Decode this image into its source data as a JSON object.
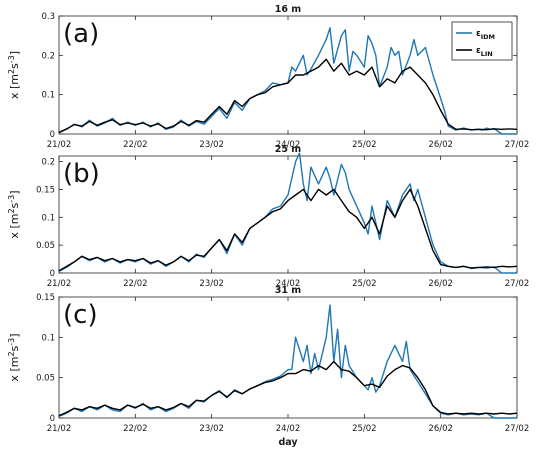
{
  "chart_data": [
    {
      "type": "line",
      "panel_label": "(a)",
      "title": "16 m",
      "ylabel": "x [m",
      "ylim": [
        0,
        0.3
      ],
      "yticks": [
        0,
        0.1,
        0.2,
        0.3
      ],
      "ytick_labels": [
        "0",
        "0.1",
        "0.2",
        "0.3"
      ],
      "xlim": [
        0,
        6
      ],
      "xticks": [
        0,
        1,
        2,
        3,
        4,
        5,
        6
      ],
      "xtick_labels": [
        "21/02",
        "22/02",
        "23/02",
        "24/02",
        "25/02",
        "26/02",
        "27/02"
      ],
      "xlabel": "",
      "legend_position": "top-right",
      "legend": [
        {
          "symbol": "ε",
          "sub": "IDM",
          "color": "#1f77b4"
        },
        {
          "symbol": "ε",
          "sub": "LIN",
          "color": "#000000"
        }
      ],
      "grid": false,
      "series": [
        {
          "key": "IDM",
          "color": "#1f77b4",
          "x": [
            0.0,
            0.1,
            0.2,
            0.3,
            0.4,
            0.5,
            0.6,
            0.7,
            0.8,
            0.9,
            1.0,
            1.1,
            1.2,
            1.3,
            1.4,
            1.5,
            1.6,
            1.7,
            1.8,
            1.9,
            2.0,
            2.1,
            2.2,
            2.3,
            2.4,
            2.5,
            2.6,
            2.7,
            2.8,
            2.9,
            3.0,
            3.05,
            3.1,
            3.2,
            3.25,
            3.3,
            3.4,
            3.5,
            3.55,
            3.6,
            3.7,
            3.75,
            3.8,
            3.85,
            3.9,
            4.0,
            4.05,
            4.1,
            4.15,
            4.2,
            4.3,
            4.35,
            4.4,
            4.45,
            4.5,
            4.6,
            4.65,
            4.7,
            4.8,
            4.9,
            5.0,
            5.05,
            5.1,
            5.2,
            5.3,
            5.4,
            5.5,
            5.55,
            5.6,
            5.65,
            5.7,
            5.8,
            5.9,
            6.0
          ],
          "y": [
            0.003,
            0.012,
            0.025,
            0.018,
            0.035,
            0.02,
            0.028,
            0.04,
            0.022,
            0.03,
            0.022,
            0.03,
            0.018,
            0.028,
            0.012,
            0.018,
            0.035,
            0.02,
            0.032,
            0.025,
            0.045,
            0.065,
            0.04,
            0.08,
            0.06,
            0.09,
            0.1,
            0.11,
            0.13,
            0.125,
            0.13,
            0.17,
            0.16,
            0.2,
            0.15,
            0.165,
            0.2,
            0.24,
            0.27,
            0.18,
            0.25,
            0.265,
            0.16,
            0.21,
            0.2,
            0.17,
            0.25,
            0.23,
            0.2,
            0.12,
            0.17,
            0.22,
            0.2,
            0.21,
            0.15,
            0.2,
            0.24,
            0.2,
            0.22,
            0.15,
            0.09,
            0.06,
            0.02,
            0.01,
            0.015,
            0.01,
            0.012,
            0.01,
            0.015,
            0.012,
            0.014,
            0.0,
            0.0,
            0.0
          ]
        },
        {
          "key": "LIN",
          "color": "#000000",
          "x": [
            0.0,
            0.1,
            0.2,
            0.3,
            0.4,
            0.5,
            0.6,
            0.7,
            0.8,
            0.9,
            1.0,
            1.1,
            1.2,
            1.3,
            1.4,
            1.5,
            1.6,
            1.7,
            1.8,
            1.9,
            2.0,
            2.1,
            2.2,
            2.3,
            2.4,
            2.5,
            2.6,
            2.7,
            2.8,
            2.9,
            3.0,
            3.1,
            3.2,
            3.3,
            3.4,
            3.5,
            3.6,
            3.7,
            3.8,
            3.9,
            4.0,
            4.1,
            4.2,
            4.3,
            4.4,
            4.5,
            4.6,
            4.7,
            4.8,
            4.9,
            5.0,
            5.1,
            5.2,
            5.3,
            5.4,
            5.5,
            5.6,
            5.7,
            5.8,
            5.9,
            6.0
          ],
          "y": [
            0.004,
            0.013,
            0.024,
            0.02,
            0.032,
            0.022,
            0.03,
            0.036,
            0.024,
            0.028,
            0.024,
            0.028,
            0.02,
            0.026,
            0.014,
            0.02,
            0.032,
            0.022,
            0.034,
            0.03,
            0.05,
            0.07,
            0.05,
            0.085,
            0.07,
            0.09,
            0.1,
            0.105,
            0.12,
            0.125,
            0.13,
            0.15,
            0.15,
            0.16,
            0.17,
            0.19,
            0.16,
            0.18,
            0.15,
            0.16,
            0.15,
            0.17,
            0.12,
            0.14,
            0.13,
            0.16,
            0.17,
            0.15,
            0.13,
            0.1,
            0.06,
            0.025,
            0.012,
            0.013,
            0.011,
            0.012,
            0.011,
            0.013,
            0.012,
            0.013,
            0.012
          ]
        }
      ]
    },
    {
      "type": "line",
      "panel_label": "(b)",
      "title": "25 m",
      "ylabel": "x [m",
      "ylim": [
        0,
        0.21
      ],
      "yticks": [
        0,
        0.05,
        0.1,
        0.15,
        0.2
      ],
      "ytick_labels": [
        "0",
        "0.05",
        "0.1",
        "0.15",
        "0.2"
      ],
      "xlim": [
        0,
        6
      ],
      "xticks": [
        0,
        1,
        2,
        3,
        4,
        5,
        6
      ],
      "xtick_labels": [
        "21/02",
        "22/02",
        "23/02",
        "24/02",
        "25/02",
        "26/02",
        "27/02"
      ],
      "xlabel": "",
      "legend": [],
      "grid": false,
      "series": [
        {
          "key": "IDM",
          "color": "#1f77b4",
          "x": [
            0.0,
            0.1,
            0.2,
            0.3,
            0.4,
            0.5,
            0.6,
            0.7,
            0.8,
            0.9,
            1.0,
            1.1,
            1.2,
            1.3,
            1.4,
            1.5,
            1.6,
            1.7,
            1.8,
            1.9,
            2.0,
            2.1,
            2.2,
            2.3,
            2.4,
            2.5,
            2.6,
            2.7,
            2.8,
            2.9,
            3.0,
            3.05,
            3.1,
            3.15,
            3.2,
            3.25,
            3.3,
            3.4,
            3.5,
            3.55,
            3.6,
            3.7,
            3.75,
            3.8,
            3.9,
            4.0,
            4.05,
            4.1,
            4.2,
            4.3,
            4.4,
            4.5,
            4.6,
            4.65,
            4.7,
            4.8,
            4.9,
            5.0,
            5.1,
            5.2,
            5.3,
            5.4,
            5.5,
            5.6,
            5.7,
            5.8,
            5.9,
            6.0
          ],
          "y": [
            0.003,
            0.01,
            0.02,
            0.03,
            0.022,
            0.028,
            0.02,
            0.026,
            0.018,
            0.024,
            0.02,
            0.026,
            0.016,
            0.022,
            0.012,
            0.02,
            0.03,
            0.02,
            0.034,
            0.028,
            0.045,
            0.06,
            0.035,
            0.07,
            0.05,
            0.08,
            0.09,
            0.1,
            0.115,
            0.12,
            0.14,
            0.17,
            0.2,
            0.215,
            0.16,
            0.13,
            0.19,
            0.16,
            0.19,
            0.17,
            0.14,
            0.195,
            0.18,
            0.15,
            0.12,
            0.09,
            0.07,
            0.12,
            0.06,
            0.13,
            0.1,
            0.14,
            0.16,
            0.13,
            0.15,
            0.1,
            0.05,
            0.02,
            0.012,
            0.01,
            0.012,
            0.008,
            0.01,
            0.009,
            0.011,
            0.0,
            0.0,
            0.0
          ]
        },
        {
          "key": "LIN",
          "color": "#000000",
          "x": [
            0.0,
            0.1,
            0.2,
            0.3,
            0.4,
            0.5,
            0.6,
            0.7,
            0.8,
            0.9,
            1.0,
            1.1,
            1.2,
            1.3,
            1.4,
            1.5,
            1.6,
            1.7,
            1.8,
            1.9,
            2.0,
            2.1,
            2.2,
            2.3,
            2.4,
            2.5,
            2.6,
            2.7,
            2.8,
            2.9,
            3.0,
            3.1,
            3.2,
            3.3,
            3.4,
            3.5,
            3.6,
            3.7,
            3.8,
            3.9,
            4.0,
            4.1,
            4.2,
            4.3,
            4.4,
            4.5,
            4.6,
            4.7,
            4.8,
            4.9,
            5.0,
            5.1,
            5.2,
            5.3,
            5.4,
            5.5,
            5.6,
            5.7,
            5.8,
            5.9,
            6.0
          ],
          "y": [
            0.004,
            0.012,
            0.02,
            0.03,
            0.024,
            0.028,
            0.022,
            0.026,
            0.02,
            0.024,
            0.022,
            0.026,
            0.018,
            0.022,
            0.014,
            0.02,
            0.03,
            0.022,
            0.032,
            0.03,
            0.045,
            0.06,
            0.04,
            0.07,
            0.055,
            0.08,
            0.09,
            0.1,
            0.11,
            0.115,
            0.13,
            0.14,
            0.15,
            0.13,
            0.15,
            0.14,
            0.15,
            0.13,
            0.11,
            0.1,
            0.08,
            0.1,
            0.07,
            0.12,
            0.1,
            0.13,
            0.15,
            0.12,
            0.08,
            0.04,
            0.015,
            0.012,
            0.01,
            0.012,
            0.009,
            0.01,
            0.011,
            0.01,
            0.012,
            0.011,
            0.012
          ]
        }
      ]
    },
    {
      "type": "line",
      "panel_label": "(c)",
      "title": "31 m",
      "ylabel": "x [m",
      "ylim": [
        0,
        0.15
      ],
      "yticks": [
        0,
        0.05,
        0.1,
        0.15
      ],
      "ytick_labels": [
        "0",
        "0.05",
        "0.1",
        "0.15"
      ],
      "xlim": [
        0,
        6
      ],
      "xticks": [
        0,
        1,
        2,
        3,
        4,
        5,
        6
      ],
      "xtick_labels": [
        "21/02",
        "22/02",
        "23/02",
        "24/02",
        "25/02",
        "26/02",
        "27/02"
      ],
      "xlabel": "day",
      "legend": [],
      "grid": false,
      "series": [
        {
          "key": "IDM",
          "color": "#1f77b4",
          "x": [
            0.0,
            0.1,
            0.2,
            0.3,
            0.4,
            0.5,
            0.6,
            0.7,
            0.8,
            0.9,
            1.0,
            1.1,
            1.2,
            1.3,
            1.4,
            1.5,
            1.6,
            1.7,
            1.8,
            1.9,
            2.0,
            2.1,
            2.2,
            2.3,
            2.4,
            2.5,
            2.6,
            2.7,
            2.8,
            2.9,
            3.0,
            3.05,
            3.1,
            3.2,
            3.25,
            3.3,
            3.35,
            3.4,
            3.5,
            3.55,
            3.6,
            3.65,
            3.7,
            3.75,
            3.8,
            3.9,
            4.0,
            4.05,
            4.1,
            4.15,
            4.2,
            4.3,
            4.4,
            4.5,
            4.55,
            4.6,
            4.7,
            4.8,
            4.9,
            5.0,
            5.1,
            5.2,
            5.3,
            5.4,
            5.5,
            5.6,
            5.7,
            5.8,
            5.9,
            6.0
          ],
          "y": [
            0.002,
            0.006,
            0.012,
            0.008,
            0.014,
            0.01,
            0.016,
            0.01,
            0.008,
            0.016,
            0.012,
            0.018,
            0.01,
            0.014,
            0.008,
            0.012,
            0.018,
            0.012,
            0.022,
            0.02,
            0.028,
            0.034,
            0.025,
            0.035,
            0.03,
            0.036,
            0.04,
            0.045,
            0.048,
            0.052,
            0.06,
            0.06,
            0.1,
            0.07,
            0.09,
            0.055,
            0.08,
            0.06,
            0.1,
            0.14,
            0.07,
            0.11,
            0.05,
            0.09,
            0.065,
            0.05,
            0.04,
            0.035,
            0.05,
            0.032,
            0.04,
            0.07,
            0.09,
            0.07,
            0.095,
            0.06,
            0.045,
            0.03,
            0.015,
            0.006,
            0.004,
            0.006,
            0.004,
            0.005,
            0.004,
            0.006,
            0.0,
            0.0,
            0.0,
            0.0
          ]
        },
        {
          "key": "LIN",
          "color": "#000000",
          "x": [
            0.0,
            0.1,
            0.2,
            0.3,
            0.4,
            0.5,
            0.6,
            0.7,
            0.8,
            0.9,
            1.0,
            1.1,
            1.2,
            1.3,
            1.4,
            1.5,
            1.6,
            1.7,
            1.8,
            1.9,
            2.0,
            2.1,
            2.2,
            2.3,
            2.4,
            2.5,
            2.6,
            2.7,
            2.8,
            2.9,
            3.0,
            3.1,
            3.2,
            3.3,
            3.4,
            3.5,
            3.6,
            3.7,
            3.8,
            3.9,
            4.0,
            4.1,
            4.2,
            4.3,
            4.4,
            4.5,
            4.6,
            4.7,
            4.8,
            4.9,
            5.0,
            5.1,
            5.2,
            5.3,
            5.4,
            5.5,
            5.6,
            5.7,
            5.8,
            5.9,
            6.0
          ],
          "y": [
            0.003,
            0.007,
            0.012,
            0.01,
            0.014,
            0.012,
            0.016,
            0.012,
            0.01,
            0.016,
            0.013,
            0.017,
            0.012,
            0.014,
            0.01,
            0.013,
            0.018,
            0.014,
            0.022,
            0.021,
            0.028,
            0.033,
            0.026,
            0.034,
            0.03,
            0.036,
            0.04,
            0.044,
            0.046,
            0.05,
            0.055,
            0.055,
            0.06,
            0.058,
            0.065,
            0.06,
            0.07,
            0.06,
            0.058,
            0.05,
            0.04,
            0.042,
            0.038,
            0.052,
            0.06,
            0.065,
            0.062,
            0.05,
            0.035,
            0.015,
            0.007,
            0.005,
            0.006,
            0.005,
            0.006,
            0.005,
            0.006,
            0.005,
            0.006,
            0.005,
            0.006
          ]
        }
      ]
    }
  ]
}
